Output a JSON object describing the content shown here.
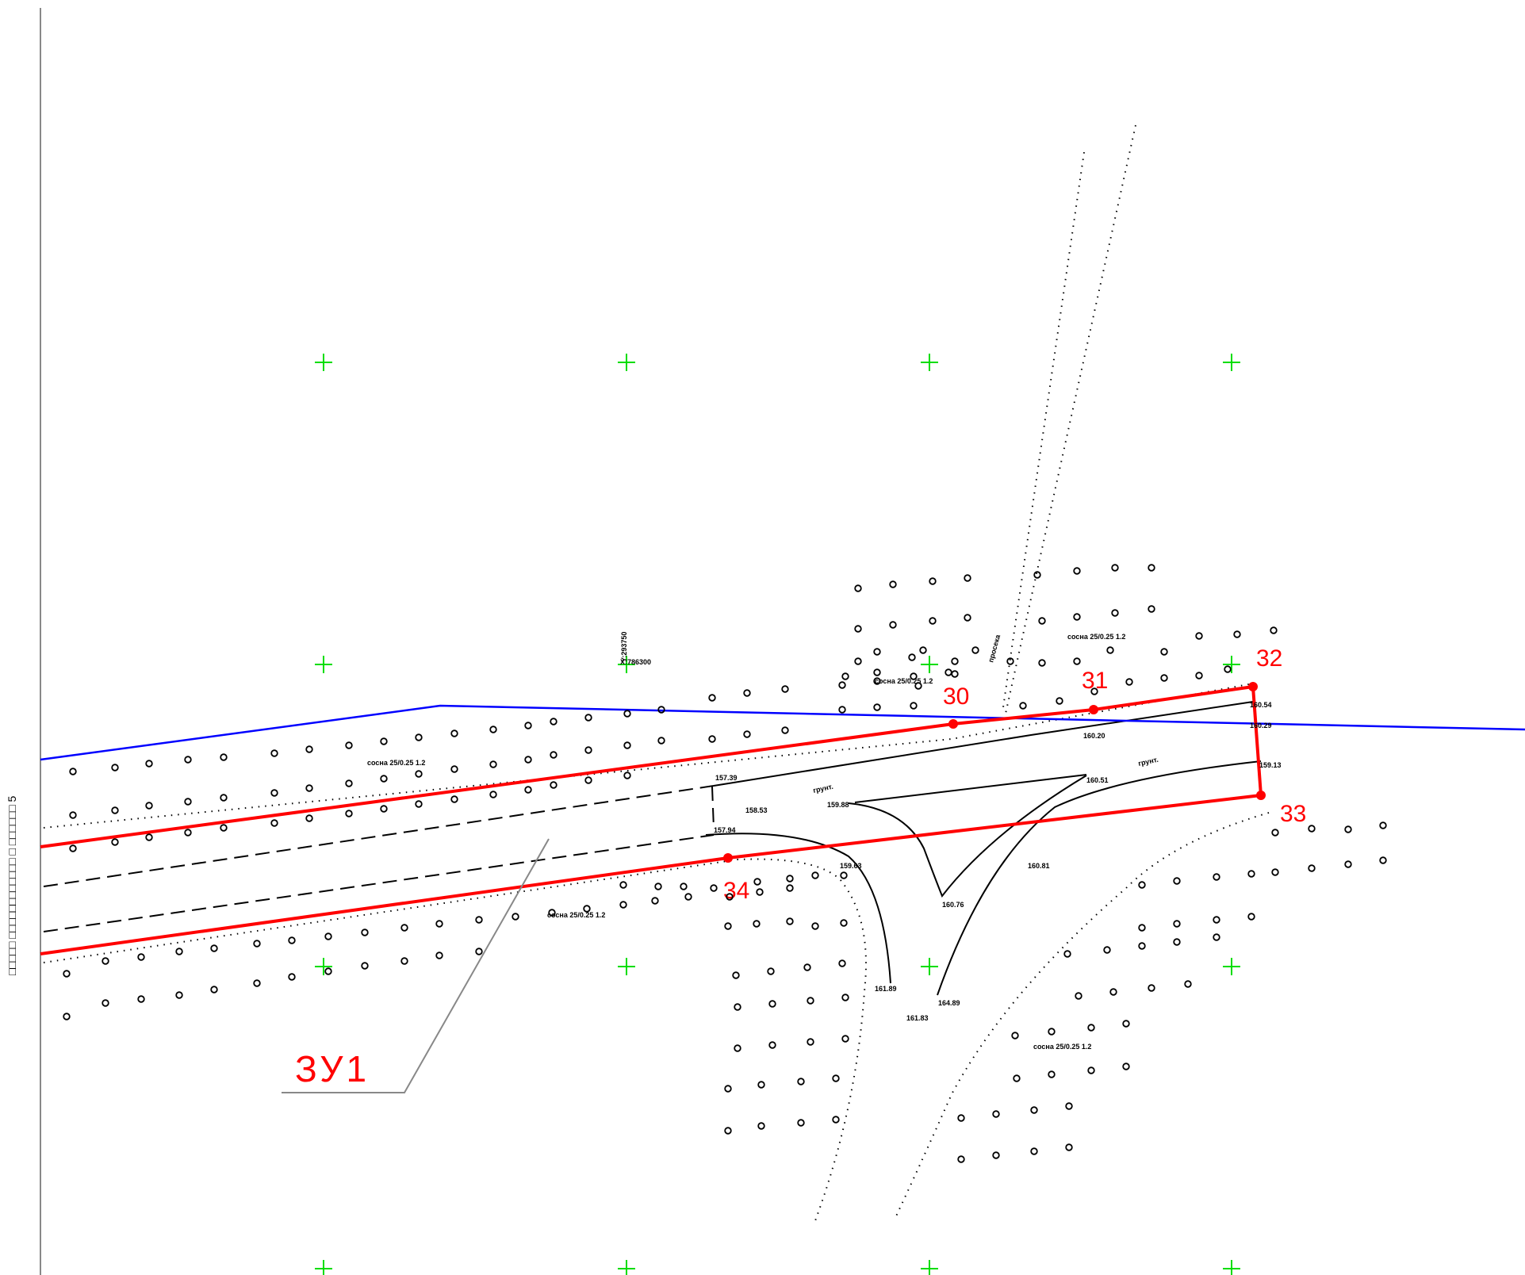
{
  "drawing": {
    "colors": {
      "boundary": "#ff0000",
      "blue_line": "#0000ff",
      "grid_cross": "#00dd00",
      "ink": "#000000",
      "frame": "#888888"
    },
    "side_caption": "□□□□□ □□□□□□□□□□□□ □ □□□□□□ 5",
    "zone_label": "ЗУ1",
    "grid_label_x": "X:786300",
    "grid_label_y": "Y:293750",
    "boundary_points": [
      {
        "id": "30",
        "label": "30"
      },
      {
        "id": "31",
        "label": "31"
      },
      {
        "id": "32",
        "label": "32"
      },
      {
        "id": "33",
        "label": "33"
      },
      {
        "id": "34",
        "label": "34"
      }
    ],
    "elevations": [
      "157.39",
      "158.53",
      "157.94",
      "159.88",
      "159.63",
      "160.51",
      "160.76",
      "160.81",
      "161.89",
      "161.83",
      "164.89",
      "160.54",
      "160.29",
      "159.13",
      "160.20"
    ],
    "forest_labels": [
      "сосна 25/0.25 1.2",
      "сосна 25/0.25 1.2",
      "сосна 25/0.25 1.2",
      "сосна 25/0.25 1.2",
      "сосна 25/0.25 1.2"
    ],
    "terrain_labels": [
      "грунт.",
      "грунт.",
      "просека"
    ]
  }
}
